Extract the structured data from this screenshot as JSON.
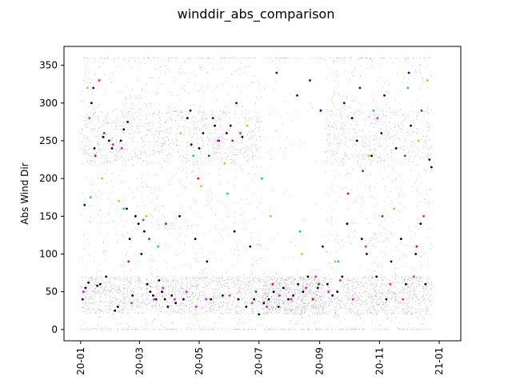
{
  "chart_data": {
    "type": "scatter",
    "title": "winddir_abs_comparison",
    "xlabel": "",
    "ylabel": "Abs Wind Dir",
    "x_ticks": [
      "2020-01",
      "2020-03",
      "2020-05",
      "2020-07",
      "2020-09",
      "2020-11",
      "2021-01"
    ],
    "x_tick_labels_shown": [
      "20-01",
      "20-03",
      "20-05",
      "20-07",
      "20-09",
      "20-11",
      "21-01"
    ],
    "xlim": [
      "2019-12-15",
      "2021-01-23"
    ],
    "y_ticks": [
      0,
      50,
      100,
      150,
      200,
      250,
      300,
      350
    ],
    "ylim": [
      -15,
      375
    ],
    "grid": false,
    "legend": "none",
    "series_colors": [
      "#000000",
      "#ff00ff",
      "#0000ff",
      "#c8c800",
      "#00c8c8",
      "#ff0000",
      "#008000"
    ],
    "date_range": [
      "2020-01-01",
      "2020-12-24"
    ],
    "series": [
      {
        "points": [
          [
            "2020-01-03",
            40
          ],
          [
            "2020-01-06",
            55
          ],
          [
            "2020-01-09",
            62
          ],
          [
            "2020-01-12",
            300
          ],
          [
            "2020-01-15",
            240
          ],
          [
            "2020-01-18",
            58
          ],
          [
            "2020-01-21",
            60
          ],
          [
            "2020-01-24",
            255
          ],
          [
            "2020-01-27",
            70
          ],
          [
            "2020-01-30",
            250
          ],
          [
            "2020-02-02",
            240
          ],
          [
            "2020-02-05",
            25
          ],
          [
            "2020-02-08",
            30
          ],
          [
            "2020-02-11",
            250
          ],
          [
            "2020-02-14",
            265
          ],
          [
            "2020-02-17",
            160
          ],
          [
            "2020-02-20",
            120
          ],
          [
            "2020-02-23",
            45
          ],
          [
            "2020-02-26",
            150
          ],
          [
            "2020-02-29",
            140
          ],
          [
            "2020-03-03",
            100
          ],
          [
            "2020-03-06",
            130
          ],
          [
            "2020-03-09",
            60
          ],
          [
            "2020-03-12",
            50
          ],
          [
            "2020-03-15",
            45
          ],
          [
            "2020-03-18",
            40
          ],
          [
            "2020-03-21",
            65
          ],
          [
            "2020-03-24",
            50
          ],
          [
            "2020-03-27",
            40
          ],
          [
            "2020-03-30",
            30
          ],
          [
            "2020-04-03",
            45
          ],
          [
            "2020-04-07",
            35
          ],
          [
            "2020-04-11",
            150
          ],
          [
            "2020-04-15",
            40
          ],
          [
            "2020-04-19",
            280
          ],
          [
            "2020-04-23",
            245
          ],
          [
            "2020-04-27",
            120
          ],
          [
            "2020-05-01",
            240
          ],
          [
            "2020-05-05",
            260
          ],
          [
            "2020-05-09",
            90
          ],
          [
            "2020-05-13",
            40
          ],
          [
            "2020-05-17",
            270
          ],
          [
            "2020-05-21",
            250
          ],
          [
            "2020-05-25",
            45
          ],
          [
            "2020-05-29",
            260
          ],
          [
            "2020-06-02",
            270
          ],
          [
            "2020-06-06",
            130
          ],
          [
            "2020-06-10",
            40
          ],
          [
            "2020-06-14",
            255
          ],
          [
            "2020-06-18",
            30
          ],
          [
            "2020-06-22",
            110
          ],
          [
            "2020-06-26",
            40
          ],
          [
            "2020-07-01",
            20
          ],
          [
            "2020-07-06",
            35
          ],
          [
            "2020-07-11",
            40
          ],
          [
            "2020-07-16",
            50
          ],
          [
            "2020-07-21",
            30
          ],
          [
            "2020-07-26",
            55
          ],
          [
            "2020-07-31",
            40
          ],
          [
            "2020-08-05",
            45
          ],
          [
            "2020-08-10",
            60
          ],
          [
            "2020-08-15",
            50
          ],
          [
            "2020-08-20",
            70
          ],
          [
            "2020-08-25",
            40
          ],
          [
            "2020-08-30",
            55
          ],
          [
            "2020-09-04",
            110
          ],
          [
            "2020-09-09",
            60
          ],
          [
            "2020-09-14",
            45
          ],
          [
            "2020-09-19",
            50
          ],
          [
            "2020-09-24",
            70
          ],
          [
            "2020-09-29",
            140
          ],
          [
            "2020-10-04",
            280
          ],
          [
            "2020-10-09",
            250
          ],
          [
            "2020-10-14",
            120
          ],
          [
            "2020-10-19",
            100
          ],
          [
            "2020-10-24",
            230
          ],
          [
            "2020-10-29",
            70
          ],
          [
            "2020-11-03",
            260
          ],
          [
            "2020-11-08",
            40
          ],
          [
            "2020-11-13",
            90
          ],
          [
            "2020-11-18",
            240
          ],
          [
            "2020-11-23",
            120
          ],
          [
            "2020-11-28",
            60
          ],
          [
            "2020-12-03",
            270
          ],
          [
            "2020-12-08",
            100
          ],
          [
            "2020-12-13",
            140
          ],
          [
            "2020-12-18",
            60
          ],
          [
            "2020-12-22",
            225
          ],
          [
            "2020-12-24",
            215
          ]
        ]
      },
      {
        "points": [
          [
            "2020-01-04",
            50
          ],
          [
            "2020-01-10",
            280
          ],
          [
            "2020-01-20",
            330
          ],
          [
            "2020-02-03",
            245
          ],
          [
            "2020-02-12",
            240
          ],
          [
            "2020-02-22",
            35
          ],
          [
            "2020-03-05",
            145
          ],
          [
            "2020-03-16",
            40
          ],
          [
            "2020-03-25",
            55
          ],
          [
            "2020-04-06",
            40
          ],
          [
            "2020-04-18",
            50
          ],
          [
            "2020-04-28",
            30
          ],
          [
            "2020-05-08",
            40
          ],
          [
            "2020-05-20",
            250
          ],
          [
            "2020-06-01",
            45
          ],
          [
            "2020-06-12",
            260
          ],
          [
            "2020-06-24",
            35
          ],
          [
            "2020-07-09",
            30
          ],
          [
            "2020-07-22",
            45
          ],
          [
            "2020-08-03",
            40
          ],
          [
            "2020-08-18",
            55
          ],
          [
            "2020-08-28",
            70
          ],
          [
            "2020-09-10",
            50
          ],
          [
            "2020-09-22",
            65
          ],
          [
            "2020-10-05",
            40
          ],
          [
            "2020-10-18",
            110
          ],
          [
            "2020-10-30",
            280
          ],
          [
            "2020-11-12",
            60
          ],
          [
            "2020-11-25",
            40
          ],
          [
            "2020-12-06",
            70
          ],
          [
            "2020-12-16",
            150
          ]
        ]
      },
      {
        "points": [
          [
            "2020-01-05",
            165
          ],
          [
            "2020-01-14",
            320
          ],
          [
            "2020-02-18",
            275
          ],
          [
            "2020-04-22",
            290
          ],
          [
            "2020-05-15",
            280
          ],
          [
            "2020-06-08",
            300
          ],
          [
            "2020-07-19",
            340
          ],
          [
            "2020-08-09",
            310
          ],
          [
            "2020-08-22",
            330
          ],
          [
            "2020-09-02",
            290
          ],
          [
            "2020-09-26",
            300
          ],
          [
            "2020-10-12",
            320
          ],
          [
            "2020-11-06",
            310
          ],
          [
            "2020-12-01",
            340
          ]
        ]
      },
      {
        "points": [
          [
            "2020-01-08",
            320
          ],
          [
            "2020-01-23",
            200
          ],
          [
            "2020-02-09",
            170
          ],
          [
            "2020-03-08",
            150
          ],
          [
            "2020-04-12",
            260
          ],
          [
            "2020-05-03",
            190
          ],
          [
            "2020-05-27",
            220
          ],
          [
            "2020-06-19",
            270
          ],
          [
            "2020-07-13",
            150
          ],
          [
            "2020-08-14",
            100
          ],
          [
            "2020-09-17",
            90
          ],
          [
            "2020-10-21",
            230
          ],
          [
            "2020-11-16",
            160
          ],
          [
            "2020-12-11",
            250
          ],
          [
            "2020-12-20",
            330
          ]
        ]
      },
      {
        "points": [
          [
            "2020-01-11",
            175
          ],
          [
            "2020-02-14",
            160
          ],
          [
            "2020-03-20",
            110
          ],
          [
            "2020-04-25",
            230
          ],
          [
            "2020-05-30",
            180
          ],
          [
            "2020-07-04",
            200
          ],
          [
            "2020-08-12",
            130
          ],
          [
            "2020-09-20",
            90
          ],
          [
            "2020-10-26",
            290
          ],
          [
            "2020-11-30",
            320
          ]
        ]
      },
      {
        "points": [
          [
            "2020-01-16",
            230
          ],
          [
            "2020-02-19",
            90
          ],
          [
            "2020-03-28",
            140
          ],
          [
            "2020-04-30",
            200
          ],
          [
            "2020-06-04",
            250
          ],
          [
            "2020-07-15",
            60
          ],
          [
            "2020-08-25",
            40
          ],
          [
            "2020-09-30",
            180
          ],
          [
            "2020-11-04",
            150
          ],
          [
            "2020-12-09",
            110
          ]
        ]
      },
      {
        "points": [
          [
            "2020-01-25",
            260
          ],
          [
            "2020-03-11",
            120
          ],
          [
            "2020-05-11",
            230
          ],
          [
            "2020-06-28",
            50
          ],
          [
            "2020-08-31",
            60
          ],
          [
            "2020-10-15",
            210
          ],
          [
            "2020-11-27",
            230
          ],
          [
            "2020-12-14",
            290
          ]
        ]
      }
    ]
  }
}
